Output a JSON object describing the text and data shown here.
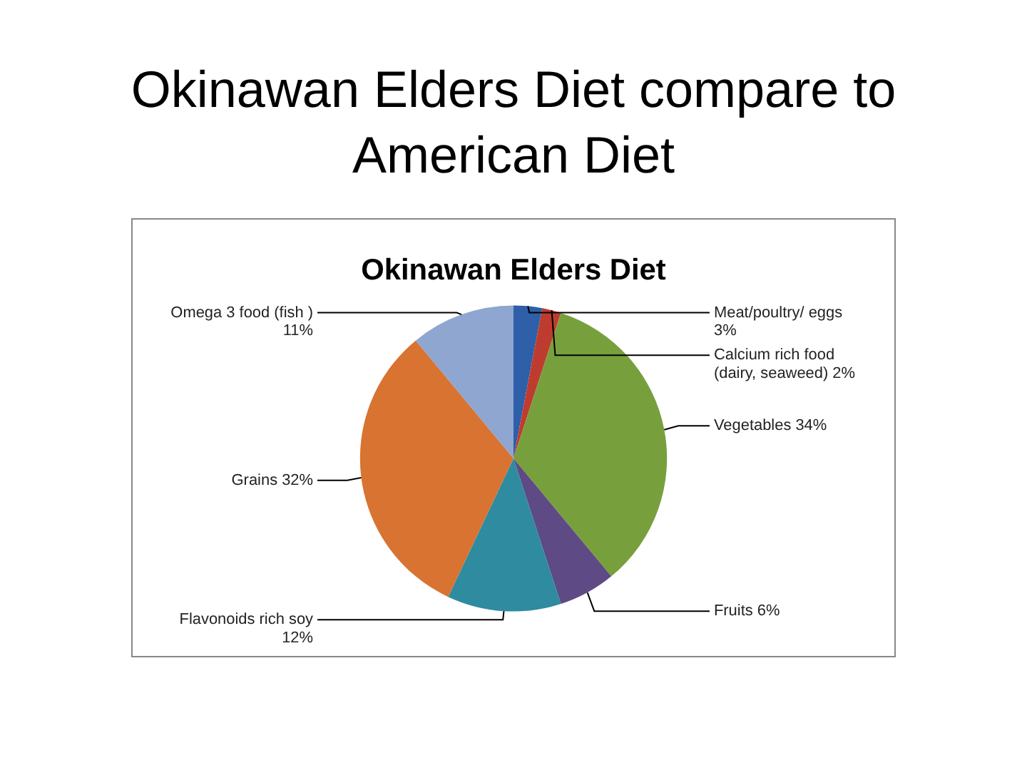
{
  "chart_data": {
    "type": "pie",
    "title": "Okinawan Elders Diet compare to American Diet",
    "subtitle": "Okinawan Elders Diet",
    "categories": [
      "Meat/poultry/ eggs",
      "Calcium rich food (dairy, seaweed)",
      "Vegetables",
      "Fruits",
      "Flavonoids rich soy",
      "Grains",
      "Omega 3 food (fish )"
    ],
    "values": [
      3,
      2,
      34,
      6,
      12,
      32,
      11
    ],
    "value_labels": [
      "3%",
      "2%",
      "34%",
      "6%",
      "12%",
      "32%",
      "11%"
    ],
    "colors": [
      "#2e5fa8",
      "#be3c2f",
      "#77a03c",
      "#5e4a85",
      "#2e8ba0",
      "#d87331",
      "#8ea6d0"
    ],
    "legend": false
  }
}
